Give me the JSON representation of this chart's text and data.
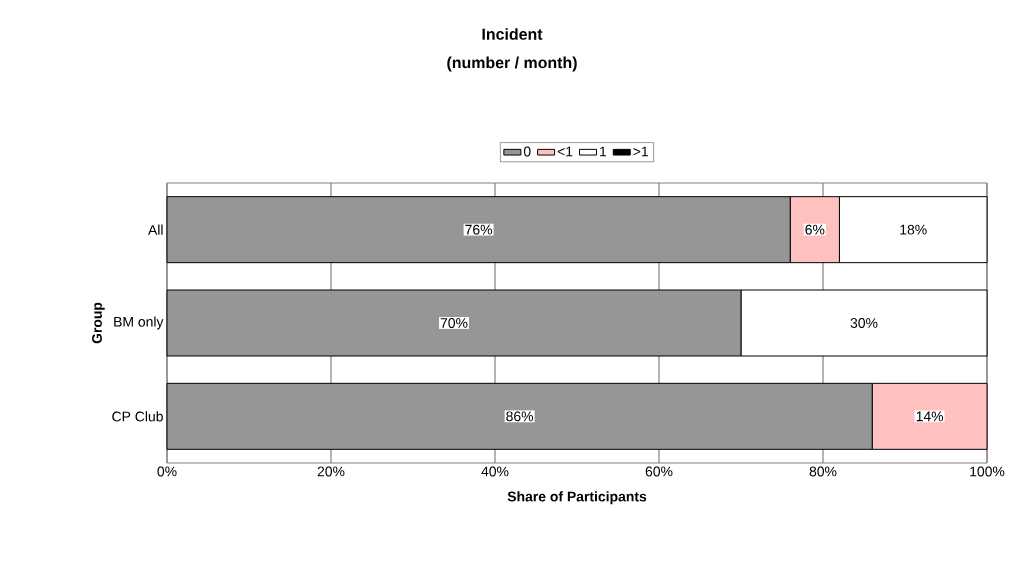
{
  "chart_data": {
    "type": "bar",
    "orientation": "horizontal",
    "stacked": true,
    "title": "Incident",
    "subtitle": "(number / month)",
    "xlabel": "Share of Participants",
    "ylabel": "Group",
    "categories": [
      "All",
      "BM only",
      "CP Club"
    ],
    "series": [
      {
        "name": "0",
        "color": "#969696",
        "values": [
          76,
          70,
          86
        ],
        "value_labels": [
          "76%",
          "70%",
          "86%"
        ]
      },
      {
        "name": "<1",
        "color": "#ffc0c0",
        "values": [
          6,
          0,
          14
        ],
        "value_labels": [
          "6%",
          null,
          "14%"
        ]
      },
      {
        "name": "1",
        "color": "#ffffff",
        "values": [
          18,
          30,
          0
        ],
        "value_labels": [
          "18%",
          "30%",
          null
        ]
      },
      {
        "name": ">1",
        "color": "#000000",
        "values": [
          0,
          0,
          0
        ],
        "value_labels": [
          null,
          null,
          null
        ]
      }
    ],
    "xlim": [
      0,
      100
    ],
    "xticks": [
      {
        "value": 0,
        "label": "0%"
      },
      {
        "value": 20,
        "label": "20%"
      },
      {
        "value": 40,
        "label": "40%"
      },
      {
        "value": 60,
        "label": "60%"
      },
      {
        "value": 80,
        "label": "80%"
      },
      {
        "value": 100,
        "label": "100%"
      }
    ],
    "grid": "x",
    "legend": "top"
  }
}
